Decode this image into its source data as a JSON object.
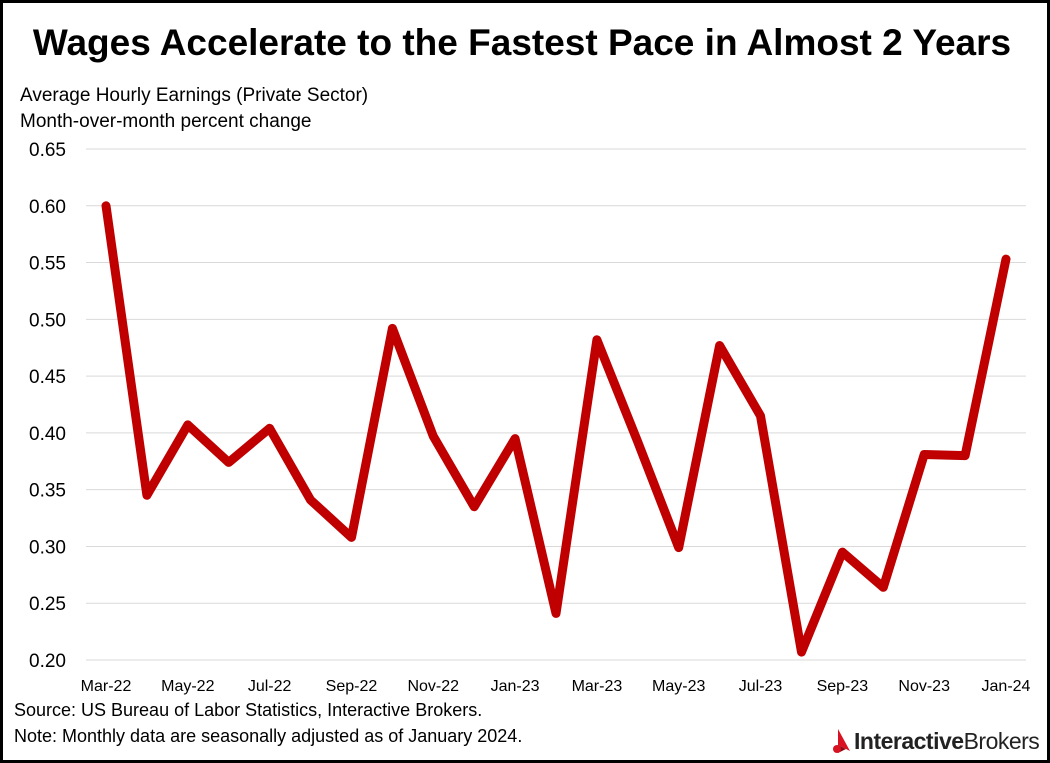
{
  "chart_data": {
    "type": "line",
    "title": "Wages Accelerate to the Fastest Pace in Almost 2 Years",
    "subtitle_lines": [
      "Average Hourly Earnings (Private Sector)",
      "Month-over-month percent change"
    ],
    "ylim": [
      0.2,
      0.65
    ],
    "y_ticks": [
      "0.65",
      "0.60",
      "0.55",
      "0.50",
      "0.45",
      "0.40",
      "0.35",
      "0.30",
      "0.25",
      "0.20"
    ],
    "x": [
      "Mar-22",
      "Apr-22",
      "May-22",
      "Jun-22",
      "Jul-22",
      "Aug-22",
      "Sep-22",
      "Oct-22",
      "Nov-22",
      "Dec-22",
      "Jan-23",
      "Feb-23",
      "Mar-23",
      "Apr-23",
      "May-23",
      "Jun-23",
      "Jul-23",
      "Aug-23",
      "Sep-23",
      "Oct-23",
      "Nov-23",
      "Dec-23",
      "Jan-24"
    ],
    "x_tick_labels": [
      "Mar-22",
      "May-22",
      "Jul-22",
      "Sep-22",
      "Nov-22",
      "Jan-23",
      "Mar-23",
      "May-23",
      "Jul-23",
      "Sep-23",
      "Nov-23",
      "Jan-24"
    ],
    "series": [
      {
        "values": [
          0.6,
          0.345,
          0.407,
          0.374,
          0.404,
          0.341,
          0.308,
          0.492,
          0.397,
          0.335,
          0.395,
          0.241,
          0.482,
          0.392,
          0.299,
          0.477,
          0.415,
          0.207,
          0.295,
          0.264,
          0.381,
          0.38,
          0.553
        ]
      }
    ],
    "line_color": "#C00000",
    "grid": true,
    "legend": "none"
  },
  "footer": {
    "source": "Source: US Bureau of Labor Statistics, Interactive Brokers.",
    "note": "Note: Monthly data are seasonally adjusted as of January 2024."
  },
  "logo": {
    "part1": "Interactive",
    "part2": "Brokers",
    "icon": "ib-flag-icon",
    "color": "#D81222"
  }
}
